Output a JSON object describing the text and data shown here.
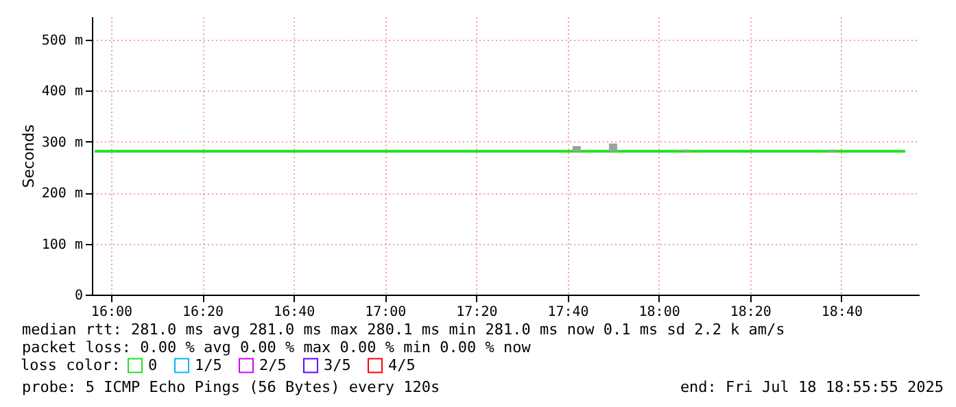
{
  "chart_data": {
    "type": "line",
    "ylabel": "Seconds",
    "legend_title": "loss color:",
    "legend": "bottom",
    "grid": true,
    "xlim": [
      15.93,
      18.95
    ],
    "ylim": [
      0,
      545
    ],
    "xticks": [
      {
        "value": 16,
        "label": "16:00"
      },
      {
        "value": 16.3333,
        "label": "16:20"
      },
      {
        "value": 16.6667,
        "label": "16:40"
      },
      {
        "value": 17,
        "label": "17:00"
      },
      {
        "value": 17.3333,
        "label": "17:20"
      },
      {
        "value": 17.6667,
        "label": "17:40"
      },
      {
        "value": 18,
        "label": "18:00"
      },
      {
        "value": 18.3333,
        "label": "18:20"
      },
      {
        "value": 18.6667,
        "label": "18:40"
      }
    ],
    "yticks": [
      0,
      {
        "value": 100,
        "label": "100 m"
      },
      {
        "value": 200,
        "label": "200 m"
      },
      {
        "value": 300,
        "label": "300 m"
      },
      {
        "value": 400,
        "label": "400 m"
      },
      {
        "value": 500,
        "label": "500 m"
      }
    ],
    "series": [
      {
        "name": "0",
        "color": "#20e020",
        "x": [
          15.94,
          16.333,
          16.667,
          17,
          17.333,
          17.667,
          18,
          18.333,
          18.667,
          18.9
        ],
        "values": [
          281,
          281,
          281,
          281,
          281,
          281,
          281,
          281,
          281,
          281
        ]
      },
      {
        "type": "bar",
        "color": "#a0a0a0",
        "x": [
          17.7,
          17.833,
          18.1,
          18.633
        ],
        "base": [
          281,
          281,
          281,
          281
        ],
        "values": [
          10,
          15,
          3,
          3
        ]
      },
      {
        "name": "1/5",
        "color": "#00b8ff"
      },
      {
        "name": "2/5",
        "color": "#d400ff"
      },
      {
        "name": "3/5",
        "color": "#6a00ff"
      },
      {
        "name": "4/5",
        "color": "#ff0000"
      }
    ],
    "annotations": [
      "median rtt:  281.0 ms avg  281.0 ms max  280.1 ms min  281.0 ms now  0.1 ms sd  2.2 k am/s",
      "packet loss: 0.00 % avg  0.00 % max  0.00 % min  0.00 % now",
      "probe:       5 ICMP Echo Pings (56 Bytes) every 120s",
      "end: Fri Jul 18 18:55:55 2025"
    ]
  }
}
